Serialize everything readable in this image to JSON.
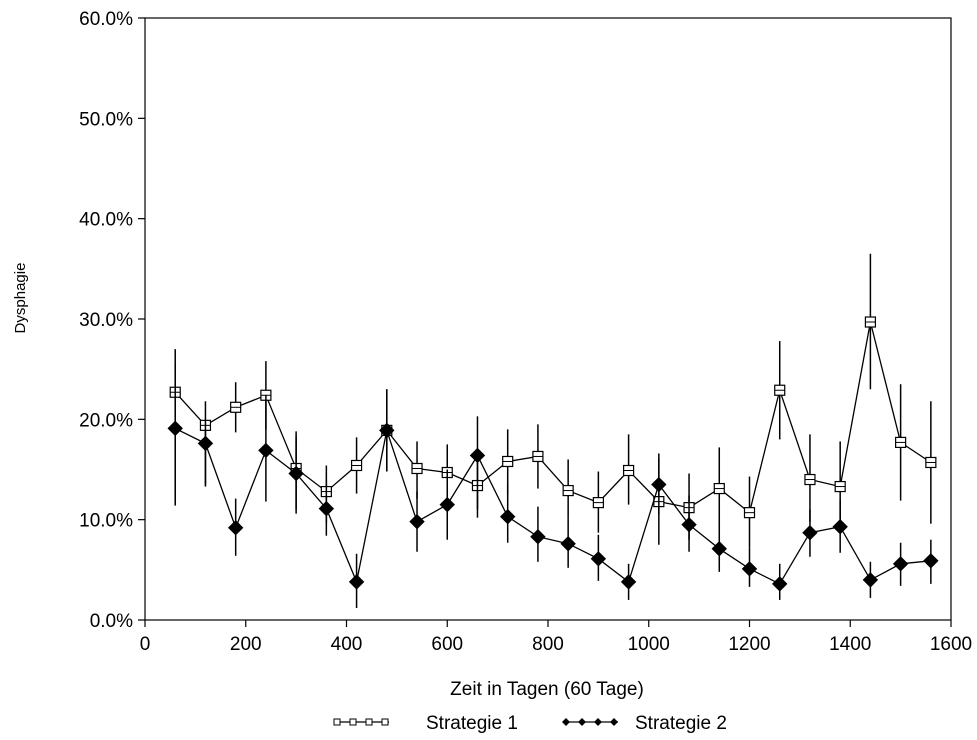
{
  "chart_data": {
    "type": "line",
    "xlabel": "Zeit in Tagen (60 Tage)",
    "ylabel": "Dysphagie",
    "xlim": [
      0,
      1600
    ],
    "ylim": [
      0,
      60
    ],
    "x_ticks": [
      0,
      200,
      400,
      600,
      800,
      1000,
      1200,
      1400,
      1600
    ],
    "x_tick_labels": [
      "0",
      "200",
      "400",
      "600",
      "800",
      "1000",
      "1200",
      "1400",
      "1600"
    ],
    "y_ticks": [
      0,
      10,
      20,
      30,
      40,
      50,
      60
    ],
    "y_tick_labels": [
      "0.0%",
      "10.0%",
      "20.0%",
      "30.0%",
      "40.0%",
      "50.0%",
      "60.0%"
    ],
    "grid": false,
    "legend_position": "bottom",
    "x": [
      60,
      120,
      180,
      240,
      300,
      360,
      420,
      480,
      540,
      600,
      660,
      720,
      780,
      840,
      900,
      960,
      1020,
      1080,
      1140,
      1200,
      1260,
      1320,
      1380,
      1440,
      1500,
      1560
    ],
    "series": [
      {
        "name": "Strategie 1",
        "marker": "open-square",
        "color": "#000000",
        "values": [
          22.7,
          19.4,
          21.2,
          22.4,
          15.1,
          12.8,
          15.4,
          18.9,
          15.1,
          14.7,
          13.4,
          15.8,
          16.3,
          12.9,
          11.7,
          14.9,
          11.8,
          11.2,
          13.1,
          10.7,
          22.9,
          14.0,
          13.3,
          29.7,
          17.7,
          15.7
        ],
        "err_low": [
          11.6,
          13.3,
          18.7,
          19.0,
          11.0,
          9.7,
          12.6,
          14.8,
          12.1,
          11.8,
          10.2,
          12.5,
          13.1,
          10.1,
          8.7,
          11.5,
          7.5,
          8.0,
          9.5,
          7.2,
          18.0,
          9.8,
          9.1,
          23.0,
          11.9,
          9.6
        ],
        "err_high": [
          27.0,
          21.8,
          23.7,
          25.8,
          18.8,
          15.4,
          18.2,
          23.0,
          17.8,
          17.5,
          16.8,
          19.0,
          19.5,
          16.0,
          14.8,
          18.5,
          16.1,
          14.6,
          17.2,
          14.3,
          27.8,
          18.5,
          17.8,
          36.5,
          23.5,
          21.8
        ]
      },
      {
        "name": "Strategie 2",
        "marker": "filled-diamond",
        "color": "#000000",
        "values": [
          19.1,
          17.6,
          9.2,
          16.9,
          14.6,
          11.1,
          3.8,
          18.9,
          9.8,
          11.5,
          16.4,
          10.3,
          8.3,
          7.6,
          6.1,
          3.8,
          13.5,
          9.5,
          7.1,
          5.1,
          3.6,
          8.7,
          9.3,
          4.0,
          5.6,
          5.9
        ],
        "err_low": [
          11.4,
          13.4,
          6.4,
          11.8,
          10.6,
          8.4,
          1.2,
          14.8,
          6.8,
          8.0,
          11.0,
          7.7,
          5.8,
          5.2,
          3.9,
          2.0,
          10.5,
          6.8,
          4.8,
          3.3,
          2.0,
          6.3,
          6.7,
          2.2,
          3.4,
          3.6
        ],
        "err_high": [
          25.6,
          19.9,
          12.1,
          22.4,
          18.3,
          13.9,
          6.6,
          23.0,
          12.8,
          15.0,
          20.3,
          13.5,
          11.3,
          10.1,
          8.5,
          5.6,
          16.6,
          12.4,
          9.8,
          7.2,
          5.6,
          11.0,
          12.0,
          5.8,
          7.7,
          8.0
        ]
      }
    ]
  }
}
